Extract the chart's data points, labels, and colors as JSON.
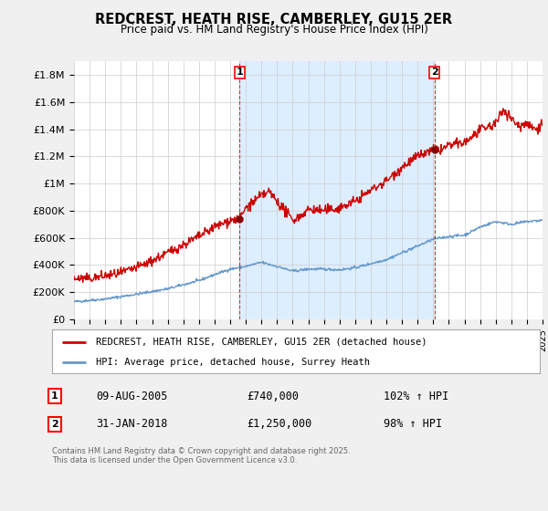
{
  "title": "REDCREST, HEATH RISE, CAMBERLEY, GU15 2ER",
  "subtitle": "Price paid vs. HM Land Registry's House Price Index (HPI)",
  "legend_label_red": "REDCREST, HEATH RISE, CAMBERLEY, GU15 2ER (detached house)",
  "legend_label_blue": "HPI: Average price, detached house, Surrey Heath",
  "annotation1_date": "09-AUG-2005",
  "annotation1_price": "£740,000",
  "annotation1_hpi": "102% ↑ HPI",
  "annotation2_date": "31-JAN-2018",
  "annotation2_price": "£1,250,000",
  "annotation2_hpi": "98% ↑ HPI",
  "footnote": "Contains HM Land Registry data © Crown copyright and database right 2025.\nThis data is licensed under the Open Government Licence v3.0.",
  "ylim": [
    0,
    1900000
  ],
  "yticks": [
    0,
    200000,
    400000,
    600000,
    800000,
    1000000,
    1200000,
    1400000,
    1600000,
    1800000
  ],
  "ytick_labels": [
    "£0",
    "£200K",
    "£400K",
    "£600K",
    "£800K",
    "£1M",
    "£1.2M",
    "£1.4M",
    "£1.6M",
    "£1.8M"
  ],
  "x_start_year": 1995,
  "x_end_year": 2025,
  "sale1_year": 2005.6,
  "sale1_price": 740000,
  "sale2_year": 2018.08,
  "sale2_price": 1250000,
  "bg_color": "#f0f0f0",
  "plot_bg_color": "#ffffff",
  "shade_color": "#ddeeff",
  "red_color": "#cc0000",
  "blue_color": "#6699cc",
  "hpi_key_years": [
    1995,
    1997,
    1999,
    2001,
    2003,
    2004,
    2005,
    2006,
    2007,
    2008,
    2009,
    2010,
    2011,
    2012,
    2013,
    2014,
    2015,
    2016,
    2017,
    2018,
    2019,
    2020,
    2021,
    2022,
    2023,
    2024,
    2025
  ],
  "hpi_key_vals": [
    130000,
    150000,
    185000,
    225000,
    285000,
    330000,
    370000,
    390000,
    420000,
    390000,
    355000,
    370000,
    370000,
    365000,
    380000,
    410000,
    440000,
    490000,
    540000,
    590000,
    610000,
    620000,
    680000,
    720000,
    700000,
    720000,
    730000
  ],
  "prop_key_years": [
    1995,
    1996,
    1997,
    1998,
    1999,
    2000,
    2001,
    2002,
    2003,
    2004,
    2005,
    2005.6,
    2006,
    2007,
    2007.5,
    2008,
    2009,
    2009.5,
    2010,
    2011,
    2012,
    2013,
    2014,
    2015,
    2016,
    2017,
    2018.08,
    2018.5,
    2019,
    2020,
    2021,
    2022,
    2022.5,
    2023,
    2023.5,
    2024,
    2024.5,
    2025
  ],
  "prop_key_vals": [
    300000,
    300000,
    320000,
    340000,
    380000,
    430000,
    490000,
    550000,
    610000,
    680000,
    730000,
    740000,
    820000,
    910000,
    940000,
    870000,
    730000,
    760000,
    810000,
    800000,
    820000,
    870000,
    950000,
    1020000,
    1120000,
    1200000,
    1250000,
    1250000,
    1280000,
    1300000,
    1390000,
    1440000,
    1550000,
    1480000,
    1420000,
    1450000,
    1400000,
    1440000
  ]
}
